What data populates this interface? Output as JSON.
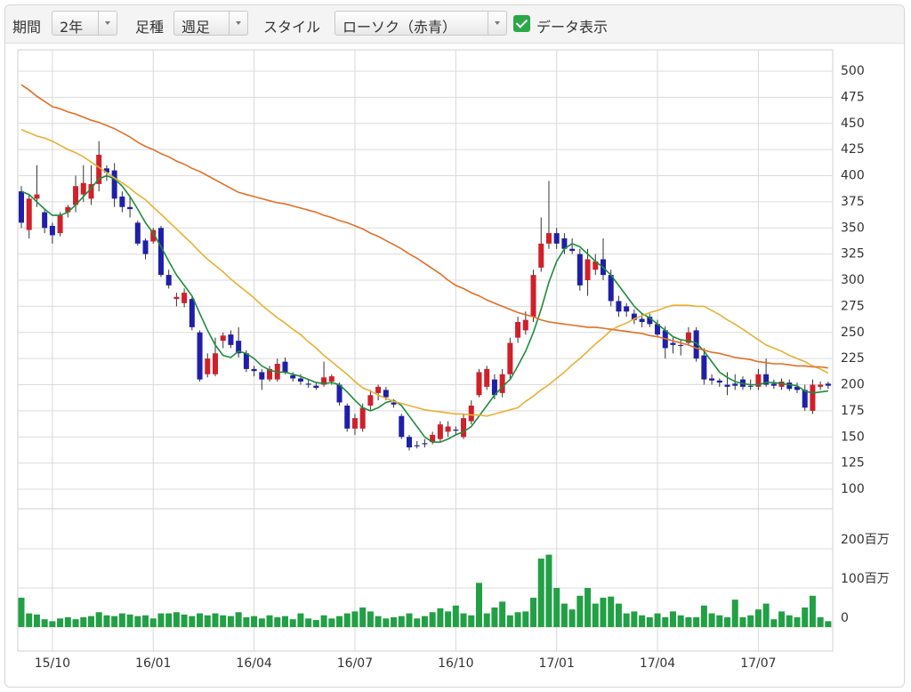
{
  "toolbar": {
    "period_label": "期間",
    "period_value": "2年",
    "interval_label": "足種",
    "interval_value": "週足",
    "style_label": "スタイル",
    "style_value": "ローソク（赤青）",
    "data_display_label": "データ表示",
    "data_display_checked": true
  },
  "chart_data": {
    "type": "candlestick",
    "categories": [
      null,
      null,
      null,
      null,
      "15/10",
      null,
      null,
      null,
      null,
      null,
      null,
      null,
      null,
      null,
      null,
      null,
      null,
      "16/01",
      null,
      null,
      null,
      null,
      null,
      null,
      null,
      null,
      null,
      null,
      null,
      null,
      "16/04",
      null,
      null,
      null,
      null,
      null,
      null,
      null,
      null,
      null,
      null,
      null,
      null,
      "16/07",
      null,
      null,
      null,
      null,
      null,
      null,
      null,
      null,
      null,
      null,
      null,
      null,
      "16/10",
      null,
      null,
      null,
      null,
      null,
      null,
      null,
      null,
      null,
      null,
      null,
      null,
      "17/01",
      null,
      null,
      null,
      null,
      null,
      null,
      null,
      null,
      null,
      null,
      null,
      null,
      "17/04",
      null,
      null,
      null,
      null,
      null,
      null,
      null,
      null,
      null,
      null,
      null,
      null,
      "17/07",
      null,
      null,
      null,
      null,
      null,
      null,
      null,
      null,
      null
    ],
    "open": [
      385,
      348,
      378,
      365,
      352,
      345,
      365,
      372,
      382,
      378,
      392,
      407,
      405,
      380,
      370,
      355,
      338,
      337,
      350,
      305,
      282,
      278,
      282,
      250,
      210,
      210,
      242,
      248,
      242,
      230,
      215,
      212,
      205,
      205,
      222,
      209,
      206,
      201,
      199,
      200,
      203,
      200,
      180,
      158,
      158,
      180,
      192,
      195,
      183,
      170,
      150,
      142,
      144,
      145,
      148,
      155,
      157,
      150,
      165,
      190,
      198,
      205,
      192,
      210,
      245,
      252,
      265,
      312,
      335,
      345,
      340,
      330,
      325,
      300,
      310,
      320,
      305,
      280,
      275,
      268,
      263,
      265,
      258,
      252,
      240,
      238,
      240,
      252,
      228,
      206,
      204,
      200,
      201,
      205,
      199,
      198,
      210,
      201,
      198,
      202,
      198,
      195,
      175,
      198,
      201
    ],
    "high": [
      390,
      382,
      410,
      368,
      355,
      365,
      372,
      400,
      410,
      410,
      433,
      410,
      412,
      385,
      380,
      357,
      340,
      350,
      352,
      310,
      288,
      292,
      284,
      252,
      230,
      245,
      250,
      252,
      255,
      233,
      218,
      215,
      218,
      225,
      226,
      212,
      210,
      205,
      202,
      222,
      210,
      202,
      182,
      172,
      182,
      195,
      200,
      198,
      186,
      172,
      152,
      146,
      148,
      155,
      165,
      165,
      160,
      172,
      185,
      215,
      218,
      210,
      215,
      245,
      265,
      270,
      310,
      360,
      395,
      350,
      345,
      340,
      330,
      330,
      325,
      340,
      310,
      285,
      278,
      272,
      268,
      268,
      262,
      256,
      245,
      243,
      255,
      255,
      235,
      210,
      206,
      212,
      210,
      208,
      205,
      215,
      225,
      205,
      206,
      205,
      202,
      200,
      205,
      203,
      203
    ],
    "low": [
      350,
      340,
      370,
      345,
      335,
      342,
      360,
      365,
      375,
      372,
      385,
      395,
      370,
      365,
      360,
      333,
      320,
      335,
      303,
      292,
      275,
      274,
      252,
      203,
      207,
      208,
      235,
      235,
      226,
      212,
      208,
      195,
      203,
      203,
      210,
      203,
      200,
      197,
      195,
      198,
      200,
      180,
      155,
      152,
      155,
      176,
      185,
      185,
      178,
      148,
      137,
      139,
      140,
      143,
      145,
      150,
      152,
      148,
      162,
      188,
      195,
      186,
      188,
      205,
      240,
      248,
      260,
      308,
      330,
      330,
      325,
      325,
      290,
      285,
      305,
      300,
      275,
      265,
      265,
      258,
      255,
      255,
      245,
      225,
      230,
      228,
      238,
      222,
      200,
      200,
      198,
      190,
      195,
      195,
      195,
      195,
      198,
      196,
      195,
      194,
      192,
      175,
      172,
      195,
      196
    ],
    "close": [
      355,
      378,
      382,
      350,
      343,
      362,
      370,
      390,
      393,
      392,
      420,
      403,
      378,
      370,
      368,
      335,
      325,
      348,
      305,
      295,
      284,
      288,
      255,
      205,
      225,
      230,
      247,
      238,
      230,
      215,
      213,
      205,
      215,
      220,
      212,
      206,
      203,
      200,
      197,
      207,
      208,
      183,
      158,
      168,
      178,
      190,
      198,
      188,
      181,
      150,
      140,
      141,
      143,
      152,
      162,
      160,
      156,
      168,
      180,
      212,
      215,
      190,
      210,
      240,
      260,
      262,
      305,
      335,
      345,
      335,
      330,
      328,
      295,
      320,
      318,
      305,
      280,
      270,
      270,
      262,
      260,
      258,
      248,
      235,
      238,
      237,
      250,
      225,
      205,
      204,
      202,
      198,
      199,
      198,
      198,
      210,
      200,
      199,
      203,
      196,
      195,
      178,
      200,
      200,
      199
    ],
    "up_color": "#d0202a",
    "down_color": "#1f1fa8",
    "wick_color": "#333333",
    "lines": [
      {
        "color": "#1e8c3c",
        "values": [
          385,
          382,
          375,
          368,
          362,
          362,
          365,
          372,
          380,
          388,
          397,
          400,
          397,
          390,
          380,
          368,
          355,
          345,
          332,
          318,
          305,
          295,
          285,
          268,
          252,
          238,
          228,
          226,
          232,
          230,
          225,
          218,
          214,
          212,
          212,
          210,
          208,
          205,
          202,
          201,
          202,
          200,
          193,
          185,
          178,
          175,
          178,
          183,
          185,
          180,
          170,
          160,
          150,
          145,
          145,
          148,
          152,
          155,
          160,
          170,
          180,
          190,
          198,
          205,
          218,
          232,
          250,
          272,
          298,
          318,
          330,
          335,
          332,
          325,
          318,
          312,
          305,
          295,
          285,
          275,
          268,
          264,
          258,
          252,
          246,
          243,
          242,
          240,
          232,
          222,
          212,
          207,
          203,
          201,
          200,
          200,
          202,
          202,
          201,
          200,
          199,
          194,
          192,
          193,
          194
        ]
      },
      {
        "color": "#e8b034",
        "values": [
          444,
          441,
          438,
          436,
          433,
          429,
          425,
          422,
          418,
          413,
          408,
          403,
          398,
          393,
          388,
          382,
          377,
          370,
          363,
          356,
          349,
          342,
          335,
          327,
          320,
          314,
          308,
          301,
          295,
          289,
          283,
          276,
          270,
          264,
          259,
          253,
          248,
          241,
          235,
          228,
          222,
          216,
          210,
          203,
          197,
          194,
          190,
          187,
          184,
          182,
          180,
          178,
          176,
          175,
          174,
          173,
          172,
          172,
          171,
          171,
          170,
          172,
          174,
          176,
          178,
          184,
          189,
          195,
          200,
          206,
          212,
          219,
          225,
          232,
          239,
          245,
          252,
          256,
          259,
          263,
          266,
          269,
          271,
          274,
          276,
          276,
          276,
          275,
          275,
          271,
          267,
          262,
          258,
          253,
          248,
          243,
          238,
          235,
          232,
          228,
          225,
          222,
          218,
          215,
          211
        ]
      },
      {
        "color": "#e07026",
        "values": [
          487,
          482,
          476,
          471,
          466,
          464,
          461,
          459,
          456,
          453,
          451,
          448,
          445,
          441,
          437,
          432,
          428,
          425,
          421,
          418,
          414,
          411,
          407,
          404,
          400,
          396,
          392,
          388,
          384,
          382,
          380,
          378,
          376,
          374,
          373,
          371,
          369,
          367,
          365,
          362,
          360,
          357,
          355,
          352,
          349,
          345,
          342,
          338,
          334,
          330,
          325,
          321,
          316,
          311,
          306,
          300,
          295,
          292,
          288,
          285,
          281,
          278,
          275,
          272,
          269,
          267,
          265,
          262,
          260,
          259,
          258,
          257,
          256,
          255,
          255,
          254,
          253,
          252,
          251,
          250,
          249,
          247,
          246,
          244,
          242,
          240,
          238,
          235,
          233,
          231,
          230,
          228,
          226,
          225,
          224,
          222,
          221,
          220,
          220,
          219,
          218,
          218,
          217,
          217,
          216
        ]
      }
    ],
    "ylim": [
      100,
      500
    ],
    "yticks": [
      100,
      125,
      150,
      175,
      200,
      225,
      250,
      275,
      300,
      325,
      350,
      375,
      400,
      425,
      450,
      475,
      500
    ],
    "grid": true,
    "volume": {
      "color": "#22a045",
      "values": [
        75,
        35,
        32,
        20,
        15,
        22,
        25,
        20,
        25,
        28,
        38,
        30,
        28,
        35,
        32,
        28,
        30,
        22,
        35,
        35,
        38,
        32,
        28,
        35,
        30,
        35,
        30,
        28,
        38,
        25,
        28,
        22,
        30,
        25,
        28,
        20,
        35,
        22,
        18,
        30,
        22,
        28,
        35,
        40,
        50,
        40,
        28,
        22,
        25,
        28,
        35,
        22,
        28,
        38,
        48,
        40,
        55,
        35,
        30,
        113,
        35,
        50,
        65,
        30,
        38,
        40,
        75,
        175,
        185,
        100,
        60,
        45,
        80,
        100,
        60,
        75,
        78,
        60,
        35,
        40,
        30,
        25,
        35,
        25,
        40,
        30,
        25,
        25,
        55,
        35,
        30,
        25,
        70,
        25,
        30,
        45,
        60,
        20,
        40,
        30,
        25,
        50,
        80,
        25,
        15
      ],
      "ylim": [
        0,
        200
      ],
      "yticks": [
        0,
        {
          "value": 100,
          "label": "100百万"
        },
        {
          "value": 200,
          "label": "200百万"
        }
      ]
    }
  }
}
